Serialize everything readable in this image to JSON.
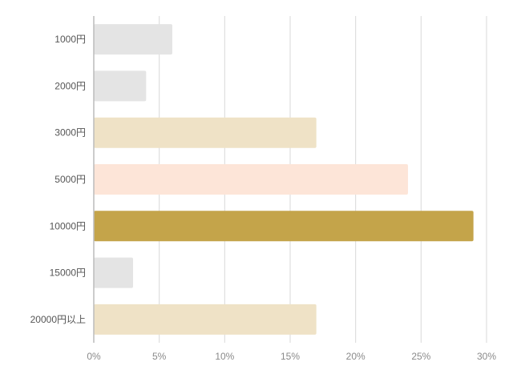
{
  "chart_data": {
    "type": "bar",
    "orientation": "horizontal",
    "title": "",
    "xlabel": "",
    "ylabel": "",
    "grid": true,
    "categories": [
      "1000円",
      "2000円",
      "3000円",
      "5000円",
      "10000円",
      "15000円",
      "20000円以上"
    ],
    "values": [
      6,
      4,
      17,
      24,
      29,
      3,
      17
    ],
    "bar_colors": [
      "#e4e4e4",
      "#e4e4e4",
      "#efe2c6",
      "#fde5d8",
      "#c4a44a",
      "#e4e4e4",
      "#efe2c6"
    ],
    "xlim": [
      0,
      30
    ],
    "x_ticks": [
      0,
      5,
      10,
      15,
      20,
      25,
      30
    ],
    "x_tick_labels": [
      "0%",
      "5%",
      "10%",
      "15%",
      "20%",
      "25%",
      "30%"
    ]
  }
}
